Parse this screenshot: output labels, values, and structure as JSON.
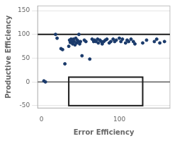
{
  "chart_data": {
    "type": "scatter",
    "xlabel": "Error Efficiency",
    "ylabel": "Productive Efficiency",
    "xlim": [
      -5,
      165
    ],
    "ylim": [
      -55,
      160
    ],
    "xticks": [
      0,
      100
    ],
    "yticks": [
      -50,
      0,
      50,
      100,
      150
    ],
    "grid": "y",
    "color": "#1a3a6b",
    "x": [
      3,
      5,
      18,
      20,
      25,
      27,
      30,
      35,
      36,
      37,
      38,
      39,
      40,
      41,
      42,
      43,
      44,
      45,
      46,
      47,
      48,
      49,
      50,
      52,
      55,
      57,
      62,
      65,
      67,
      68,
      70,
      72,
      73,
      75,
      77,
      78,
      80,
      82,
      84,
      87,
      89,
      92,
      94,
      96,
      100,
      102,
      104,
      108,
      110,
      112,
      115,
      118,
      120,
      130,
      135,
      145,
      148,
      152,
      158
    ],
    "values": [
      2,
      0,
      100,
      92,
      70,
      68,
      38,
      75,
      88,
      83,
      90,
      85,
      80,
      90,
      85,
      78,
      92,
      82,
      88,
      85,
      100,
      80,
      85,
      55,
      88,
      85,
      48,
      90,
      85,
      88,
      85,
      90,
      82,
      88,
      85,
      80,
      85,
      88,
      90,
      82,
      85,
      90,
      85,
      88,
      92,
      85,
      90,
      82,
      88,
      85,
      90,
      85,
      80,
      82,
      88,
      85,
      90,
      82,
      85
    ],
    "hlines": {
      "y": [
        100,
        0
      ],
      "color": "#1a1a1a"
    },
    "rect": {
      "x": 35,
      "y": -50,
      "width": 95,
      "height": 60,
      "color": "#1a1a1a"
    }
  }
}
